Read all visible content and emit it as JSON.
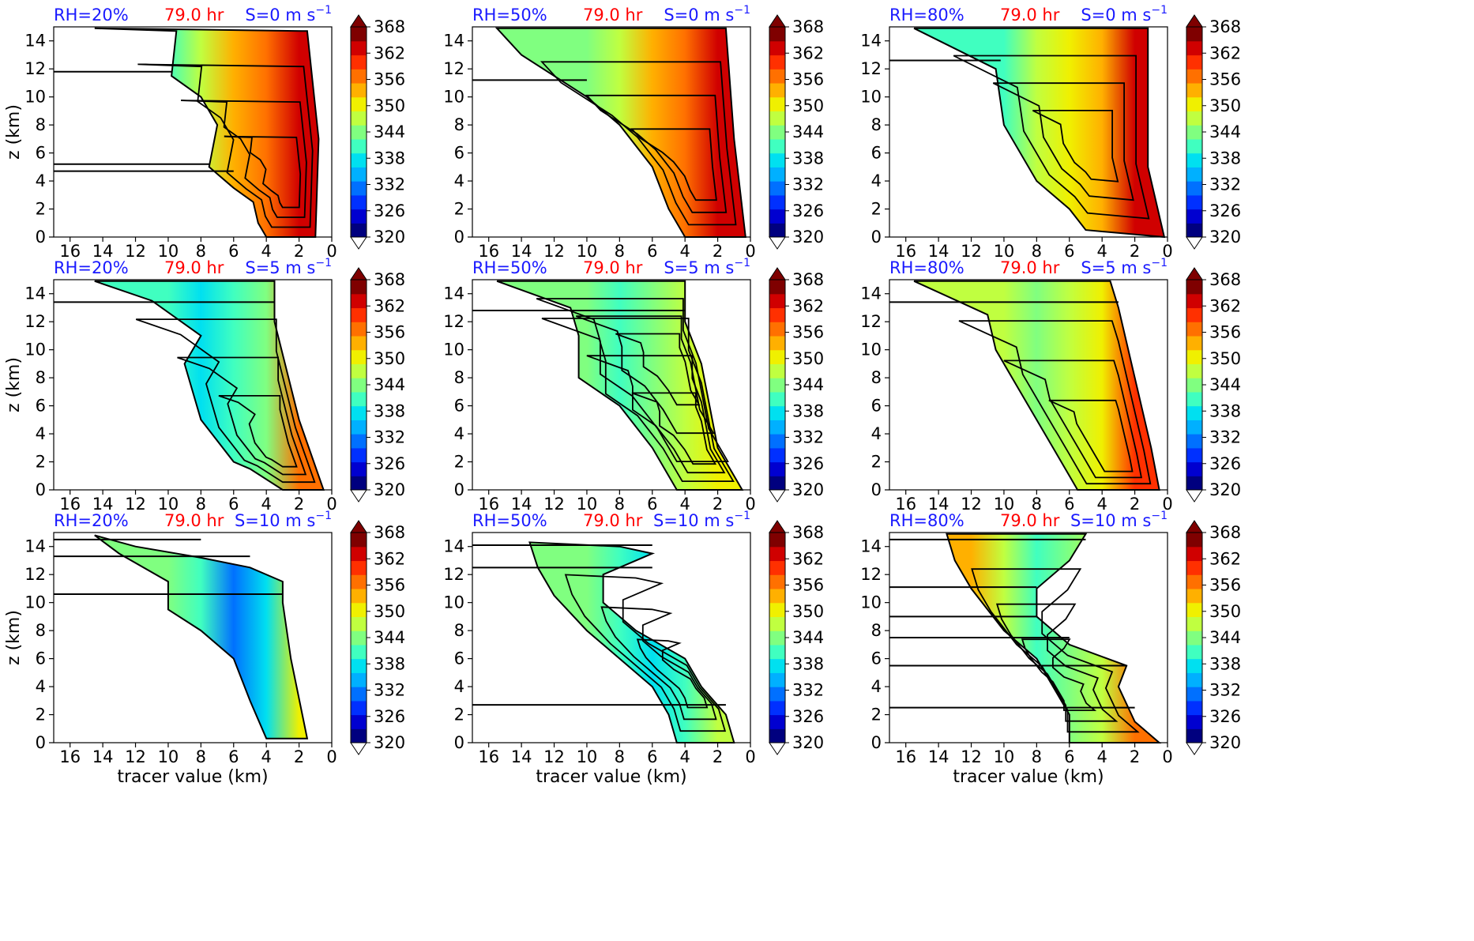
{
  "figure": {
    "ylabel": "z (km)",
    "xlabel": "tracer value (km)",
    "time_label": "79.0 hr"
  },
  "colors": {
    "rh_label": "#1a1aff",
    "time_label": "#ff0000",
    "shear_label": "#1a1aff",
    "contour": "#000000"
  },
  "colormap": [
    "#00007f",
    "#0000d0",
    "#0030ff",
    "#0070ff",
    "#00b0ff",
    "#00e0f0",
    "#40ffc0",
    "#80ff80",
    "#c0ff40",
    "#f0f000",
    "#ffb000",
    "#ff7000",
    "#ff3000",
    "#d00000",
    "#7f0000"
  ],
  "colorbar": {
    "ticks": [
      320,
      326,
      332,
      338,
      344,
      350,
      356,
      362,
      368
    ],
    "range": [
      320,
      368
    ]
  },
  "chart_data": [
    {
      "type": "heatmap",
      "rh": "RH=20%",
      "time": "79.0 hr",
      "shear": "S=0 m s",
      "shear_sup": "−1",
      "xlim": [
        17,
        0
      ],
      "ylim": [
        0,
        15
      ],
      "x_ticks": [
        16,
        14,
        12,
        10,
        8,
        6,
        4,
        2,
        0
      ],
      "y_ticks": [
        0,
        2,
        4,
        6,
        8,
        10,
        12,
        14
      ],
      "envelope": [
        [
          14.5,
          14.9
        ],
        [
          12,
          14.8
        ],
        [
          9.5,
          14.7
        ],
        [
          9.8,
          11.5
        ],
        [
          8,
          10
        ],
        [
          7,
          8
        ],
        [
          7.5,
          5
        ],
        [
          6,
          3.5
        ],
        [
          4.8,
          2.5
        ],
        [
          4.5,
          1
        ],
        [
          4,
          0
        ],
        [
          1,
          0
        ],
        [
          0.8,
          7
        ],
        [
          1.5,
          14.7
        ]
      ],
      "fill": [
        [
          10,
          340
        ],
        [
          8,
          346
        ],
        [
          6,
          352
        ],
        [
          4,
          358
        ],
        [
          2,
          362
        ]
      ],
      "horizontal_lines": [
        11.8,
        5.2,
        4.7
      ],
      "contour_centers": [
        [
          2.5,
          3.2
        ]
      ]
    },
    {
      "type": "heatmap",
      "rh": "RH=50%",
      "time": "79.0 hr",
      "shear": "S=0 m s",
      "shear_sup": "−1",
      "xlim": [
        17,
        0
      ],
      "ylim": [
        0,
        15
      ],
      "x_ticks": [
        16,
        14,
        12,
        10,
        8,
        6,
        4,
        2,
        0
      ],
      "y_ticks": [
        0,
        2,
        4,
        6,
        8,
        10,
        12,
        14
      ],
      "envelope": [
        [
          15.5,
          14.9
        ],
        [
          14,
          13
        ],
        [
          10,
          10
        ],
        [
          8,
          8
        ],
        [
          6,
          5
        ],
        [
          5,
          2
        ],
        [
          4,
          0
        ],
        [
          0.3,
          0
        ],
        [
          1,
          7
        ],
        [
          1.5,
          14.9
        ]
      ],
      "fill": [
        [
          10,
          344
        ],
        [
          8,
          348
        ],
        [
          6,
          352
        ],
        [
          4,
          356
        ],
        [
          2,
          362
        ]
      ],
      "horizontal_lines": [
        11.2
      ],
      "contour_centers": [
        [
          3,
          4
        ]
      ]
    },
    {
      "type": "heatmap",
      "rh": "RH=80%",
      "time": "79.0 hr",
      "shear": "S=0 m s",
      "shear_sup": "−1",
      "xlim": [
        17,
        0
      ],
      "ylim": [
        0,
        15
      ],
      "x_ticks": [
        16,
        14,
        12,
        10,
        8,
        6,
        4,
        2,
        0
      ],
      "y_ticks": [
        0,
        2,
        4,
        6,
        8,
        10,
        12,
        14
      ],
      "envelope": [
        [
          15.5,
          14.9
        ],
        [
          10.5,
          12
        ],
        [
          10,
          8
        ],
        [
          8,
          4
        ],
        [
          6,
          2
        ],
        [
          5,
          0.5
        ],
        [
          0.2,
          0
        ],
        [
          1.2,
          5
        ],
        [
          1.2,
          14.9
        ]
      ],
      "fill": [
        [
          10,
          342
        ],
        [
          8,
          346
        ],
        [
          6,
          350
        ],
        [
          4,
          354
        ],
        [
          2,
          362
        ]
      ],
      "horizontal_lines": [
        12.6
      ],
      "contour_centers": [
        [
          4.5,
          6
        ]
      ]
    },
    {
      "type": "heatmap",
      "rh": "RH=20%",
      "time": "79.0 hr",
      "shear": "S=5 m s",
      "shear_sup": "−1",
      "xlim": [
        17,
        0
      ],
      "ylim": [
        0,
        15
      ],
      "x_ticks": [
        16,
        14,
        12,
        10,
        8,
        6,
        4,
        2,
        0
      ],
      "y_ticks": [
        0,
        2,
        4,
        6,
        8,
        10,
        12,
        14
      ],
      "envelope": [
        [
          14.5,
          14.9
        ],
        [
          11,
          13.5
        ],
        [
          8,
          11
        ],
        [
          9,
          9
        ],
        [
          8,
          5
        ],
        [
          6,
          2
        ],
        [
          5,
          1.5
        ],
        [
          3,
          0
        ],
        [
          0.5,
          0
        ],
        [
          2,
          5
        ],
        [
          3.5,
          12
        ],
        [
          3.5,
          14.9
        ]
      ],
      "fill": [
        [
          10,
          342
        ],
        [
          8,
          338
        ],
        [
          6,
          340
        ],
        [
          4,
          344
        ],
        [
          2,
          356
        ]
      ],
      "horizontal_lines": [
        13.4
      ],
      "contour_centers": [
        [
          3,
          2.5
        ]
      ]
    },
    {
      "type": "heatmap",
      "rh": "RH=50%",
      "time": "79.0 hr",
      "shear": "S=5 m s",
      "shear_sup": "−1",
      "xlim": [
        17,
        0
      ],
      "ylim": [
        0,
        15
      ],
      "x_ticks": [
        16,
        14,
        12,
        10,
        8,
        6,
        4,
        2,
        0
      ],
      "y_ticks": [
        0,
        2,
        4,
        6,
        8,
        10,
        12,
        14
      ],
      "envelope": [
        [
          15.5,
          14.9
        ],
        [
          11,
          13
        ],
        [
          10.5,
          11
        ],
        [
          10.5,
          8
        ],
        [
          8,
          6
        ],
        [
          6,
          3
        ],
        [
          4.5,
          0
        ],
        [
          0.5,
          0
        ],
        [
          2,
          3
        ],
        [
          3,
          9
        ],
        [
          4,
          12
        ],
        [
          4,
          14.9
        ]
      ],
      "fill": [
        [
          10,
          344
        ],
        [
          8,
          342
        ],
        [
          6,
          344
        ],
        [
          4,
          346
        ],
        [
          2,
          350
        ]
      ],
      "horizontal_lines": [
        12.8
      ],
      "contour_centers": [
        [
          4.5,
          9.2
        ],
        [
          3,
          2.8
        ]
      ]
    },
    {
      "type": "heatmap",
      "rh": "RH=80%",
      "time": "79.0 hr",
      "shear": "S=5 m s",
      "shear_sup": "−1",
      "xlim": [
        17,
        0
      ],
      "ylim": [
        0,
        15
      ],
      "x_ticks": [
        16,
        14,
        12,
        10,
        8,
        6,
        4,
        2,
        0
      ],
      "y_ticks": [
        0,
        2,
        4,
        6,
        8,
        10,
        12,
        14
      ],
      "envelope": [
        [
          15.5,
          14.9
        ],
        [
          11,
          12.5
        ],
        [
          10.5,
          10
        ],
        [
          9,
          7
        ],
        [
          7,
          3
        ],
        [
          6,
          1
        ],
        [
          5.5,
          0
        ],
        [
          0.5,
          0
        ],
        [
          1,
          3
        ],
        [
          2,
          8
        ],
        [
          3,
          13
        ],
        [
          3.5,
          14.9
        ]
      ],
      "fill": [
        [
          10,
          346
        ],
        [
          8,
          344
        ],
        [
          6,
          346
        ],
        [
          4,
          350
        ],
        [
          2,
          360
        ]
      ],
      "horizontal_lines": [
        13.4
      ],
      "contour_centers": [
        [
          3,
          2
        ]
      ]
    },
    {
      "type": "heatmap",
      "rh": "RH=20%",
      "time": "79.0 hr",
      "shear": "S=10 m s",
      "shear_sup": "−1",
      "xlim": [
        17,
        0
      ],
      "ylim": [
        0,
        15
      ],
      "x_ticks": [
        16,
        14,
        12,
        10,
        8,
        6,
        4,
        2,
        0
      ],
      "y_ticks": [
        0,
        2,
        4,
        6,
        8,
        10,
        12,
        14
      ],
      "envelope": [
        [
          14.5,
          14.8
        ],
        [
          13,
          13.5
        ],
        [
          10,
          11.5
        ],
        [
          10,
          9.5
        ],
        [
          8,
          8
        ],
        [
          6,
          6
        ],
        [
          5,
          3
        ],
        [
          4,
          0.3
        ],
        [
          1.5,
          0.3
        ],
        [
          2.5,
          6
        ],
        [
          3,
          10
        ],
        [
          3,
          11.5
        ],
        [
          5,
          12.5
        ],
        [
          8,
          13.2
        ],
        [
          12,
          14
        ]
      ],
      "fill": [
        [
          10,
          344
        ],
        [
          8,
          340
        ],
        [
          6,
          332
        ],
        [
          4,
          338
        ],
        [
          2,
          350
        ]
      ],
      "horizontal_lines": [
        14.5,
        13.3,
        10.6
      ],
      "contour_centers": []
    },
    {
      "type": "heatmap",
      "rh": "RH=50%",
      "time": "79.0 hr",
      "shear": "S=10 m s",
      "shear_sup": "−1",
      "xlim": [
        17,
        0
      ],
      "ylim": [
        0,
        15
      ],
      "x_ticks": [
        16,
        14,
        12,
        10,
        8,
        6,
        4,
        2,
        0
      ],
      "y_ticks": [
        0,
        2,
        4,
        6,
        8,
        10,
        12,
        14
      ],
      "envelope": [
        [
          13.5,
          14.3
        ],
        [
          13,
          12.5
        ],
        [
          12,
          10.5
        ],
        [
          10,
          8
        ],
        [
          8,
          6
        ],
        [
          6,
          4
        ],
        [
          5,
          2
        ],
        [
          4.5,
          0
        ],
        [
          1,
          0
        ],
        [
          1.5,
          2
        ],
        [
          3,
          4
        ],
        [
          4,
          6
        ],
        [
          7,
          8
        ],
        [
          9,
          10
        ],
        [
          9,
          12
        ],
        [
          6,
          13.5
        ],
        [
          8,
          14
        ]
      ],
      "fill": [
        [
          10,
          344
        ],
        [
          8,
          340
        ],
        [
          6,
          336
        ],
        [
          4,
          340
        ],
        [
          2,
          348
        ]
      ],
      "horizontal_lines": [
        14.1,
        12.5,
        2.7
      ],
      "contour_centers": [
        [
          3.5,
          3.8
        ]
      ]
    },
    {
      "type": "heatmap",
      "rh": "RH=80%",
      "time": "79.0 hr",
      "shear": "S=10 m s",
      "shear_sup": "−1",
      "xlim": [
        17,
        0
      ],
      "ylim": [
        0,
        15
      ],
      "x_ticks": [
        16,
        14,
        12,
        10,
        8,
        6,
        4,
        2,
        0
      ],
      "y_ticks": [
        0,
        2,
        4,
        6,
        8,
        10,
        12,
        14
      ],
      "envelope": [
        [
          13.5,
          14.9
        ],
        [
          13,
          13
        ],
        [
          12,
          11
        ],
        [
          10,
          8
        ],
        [
          8,
          6
        ],
        [
          7,
          4
        ],
        [
          6,
          2
        ],
        [
          6,
          0
        ],
        [
          0.5,
          0
        ],
        [
          2,
          1.5
        ],
        [
          3,
          4
        ],
        [
          2.5,
          5.5
        ],
        [
          6,
          7
        ],
        [
          8,
          9
        ],
        [
          8,
          11
        ],
        [
          6,
          13
        ],
        [
          5,
          14.9
        ]
      ],
      "fill": [
        [
          12,
          352
        ],
        [
          10,
          346
        ],
        [
          8,
          342
        ],
        [
          6,
          344
        ],
        [
          4,
          346
        ],
        [
          2,
          356
        ]
      ],
      "horizontal_lines": [
        14.5,
        11.1,
        9.0,
        7.5,
        5.5,
        2.5
      ],
      "contour_centers": [
        [
          6.5,
          3.5
        ]
      ]
    }
  ]
}
